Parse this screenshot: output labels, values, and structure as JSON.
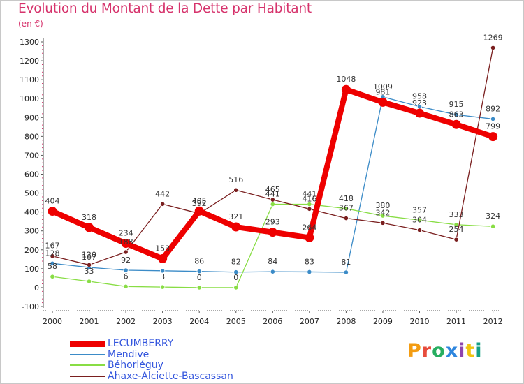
{
  "header": {
    "title": "Evolution du Montant de la Dette par Habitant",
    "subtitle": "(en €)"
  },
  "logo": {
    "text": "Proxiti",
    "colors": [
      "#f39c12",
      "#e74c3c",
      "#27ae60",
      "#2e86de",
      "#8e44ad",
      "#f1c40f",
      "#16a085"
    ]
  },
  "chart_data": {
    "type": "line",
    "title": "Evolution du Montant de la Dette par Habitant",
    "subtitle": "(en €)",
    "xlabel": "",
    "ylabel": "",
    "categories": [
      "2000",
      "2001",
      "2002",
      "2003",
      "2004",
      "2005",
      "2006",
      "2007",
      "2008",
      "2009",
      "2010",
      "2011",
      "2012"
    ],
    "ylim": [
      -100,
      1300
    ],
    "yticks": [
      "-100",
      "0",
      "100",
      "200",
      "300",
      "400",
      "500",
      "600",
      "700",
      "800",
      "900",
      "1000",
      "1100",
      "1200",
      "1300"
    ],
    "grid": false,
    "legend_position": "bottom-left",
    "series": [
      {
        "name": "LECUMBERRY",
        "color": "#ee0000",
        "values": [
          404,
          318,
          234,
          153,
          405,
          321,
          293,
          264,
          1048,
          981,
          923,
          863,
          799
        ],
        "labels": [
          "404",
          "318",
          "234",
          "153",
          "405",
          "321",
          "293",
          "264",
          "1048",
          "981",
          "923",
          "863",
          "799"
        ]
      },
      {
        "name": "Mendive",
        "color": "#3b8bc7",
        "values": [
          128,
          107,
          92,
          89,
          86,
          82,
          84,
          83,
          81,
          1009,
          958,
          915,
          892
        ],
        "labels": [
          "128",
          "107",
          "92",
          "",
          "86",
          "82",
          "84",
          "83",
          "81",
          "1009",
          "958",
          "915",
          "892"
        ]
      },
      {
        "name": "Béhorléguy",
        "color": "#88dd44",
        "values": [
          58,
          33,
          6,
          3,
          0,
          0,
          441,
          441,
          418,
          380,
          357,
          333,
          324
        ],
        "labels": [
          "58",
          "33",
          "6",
          "3",
          "0",
          "0",
          "441",
          "441",
          "418",
          "380",
          "357",
          "333",
          "324"
        ]
      },
      {
        "name": "Ahaxe-Alciette-Bascassan",
        "color": "#7a1f1f",
        "values": [
          167,
          120,
          188,
          442,
          392,
          516,
          465,
          416,
          367,
          342,
          304,
          254,
          1269
        ],
        "labels": [
          "167",
          "120",
          "188",
          "442",
          "392",
          "516",
          "465",
          "416",
          "367",
          "342",
          "304",
          "254",
          "1269"
        ]
      }
    ]
  }
}
